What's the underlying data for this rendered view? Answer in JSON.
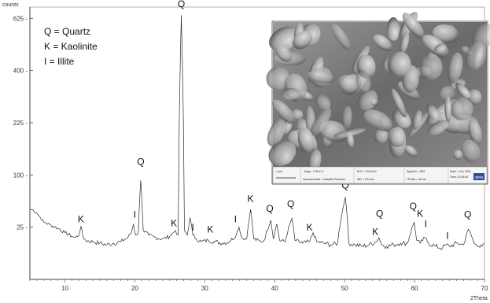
{
  "chart_data": {
    "type": "line",
    "title": "",
    "ylabel_unit": "counts",
    "xlabel_unit": "2Theta",
    "xlim": [
      5,
      70
    ],
    "ylim": [
      0,
      680
    ],
    "x_ticks": [
      10,
      20,
      30,
      40,
      50,
      60,
      70
    ],
    "y_ticks": [
      25,
      100,
      225,
      400,
      625
    ],
    "y_tick_labels": [
      "25 -",
      "100 -",
      "225 -",
      "400 -",
      "625 -"
    ],
    "y_scale": "sqrt",
    "grid": false,
    "legend": {
      "placement": "top-left",
      "entries": [
        "Q = Quartz",
        "K = Kaolinite",
        "I = Illite"
      ]
    },
    "series": [
      {
        "points": [
          [
            5,
            45
          ],
          [
            5.5,
            44
          ],
          [
            6,
            40
          ],
          [
            6.5,
            35
          ],
          [
            7,
            30
          ],
          [
            8,
            27
          ],
          [
            9,
            24
          ],
          [
            10,
            20
          ],
          [
            11,
            17
          ],
          [
            11.5,
            16
          ],
          [
            12,
            18
          ],
          [
            12.3,
            26
          ],
          [
            12.6,
            16
          ],
          [
            13,
            14
          ],
          [
            14,
            13
          ],
          [
            15,
            12
          ],
          [
            16,
            11
          ],
          [
            17,
            12
          ],
          [
            18,
            13
          ],
          [
            19,
            16
          ],
          [
            19.5,
            20
          ],
          [
            19.8,
            28
          ],
          [
            20.1,
            18
          ],
          [
            20.5,
            20
          ],
          [
            20.85,
            90
          ],
          [
            21.2,
            22
          ],
          [
            22,
            18
          ],
          [
            23,
            16
          ],
          [
            24,
            15
          ],
          [
            25,
            17
          ],
          [
            25.5,
            20
          ],
          [
            25.8,
            22
          ],
          [
            26.2,
            18
          ],
          [
            26.65,
            640
          ],
          [
            27.1,
            22
          ],
          [
            27.5,
            18
          ],
          [
            27.9,
            35
          ],
          [
            28.3,
            18
          ],
          [
            28.8,
            15
          ],
          [
            29.5,
            13
          ],
          [
            30.5,
            14
          ],
          [
            31.5,
            13
          ],
          [
            32.5,
            12
          ],
          [
            33.5,
            13
          ],
          [
            34.5,
            18
          ],
          [
            34.9,
            25
          ],
          [
            35.3,
            16
          ],
          [
            36,
            15
          ],
          [
            36.55,
            45
          ],
          [
            37,
            15
          ],
          [
            38,
            13
          ],
          [
            38.5,
            14
          ],
          [
            39.45,
            32
          ],
          [
            39.8,
            15
          ],
          [
            40.3,
            28
          ],
          [
            40.7,
            14
          ],
          [
            41.5,
            13
          ],
          [
            42.45,
            34
          ],
          [
            42.9,
            14
          ],
          [
            44,
            12
          ],
          [
            45,
            13
          ],
          [
            45.5,
            20
          ],
          [
            46,
            13
          ],
          [
            47,
            12
          ],
          [
            48,
            11
          ],
          [
            49,
            12
          ],
          [
            50.1,
            62
          ],
          [
            50.6,
            12
          ],
          [
            51.5,
            11
          ],
          [
            52.5,
            10
          ],
          [
            53.5,
            11
          ],
          [
            54.5,
            13
          ],
          [
            54.9,
            16
          ],
          [
            55.3,
            11
          ],
          [
            56,
            10
          ],
          [
            57,
            11
          ],
          [
            58,
            12
          ],
          [
            59,
            12
          ],
          [
            59.95,
            30
          ],
          [
            60.3,
            14
          ],
          [
            60.8,
            12
          ],
          [
            61.5,
            16
          ],
          [
            62,
            12
          ],
          [
            63,
            10
          ],
          [
            64,
            9
          ],
          [
            64.5,
            11
          ],
          [
            65,
            10
          ],
          [
            66,
            12
          ],
          [
            67,
            11
          ],
          [
            67.7,
            23
          ],
          [
            68.1,
            18
          ],
          [
            68.5,
            12
          ],
          [
            69,
            10
          ],
          [
            69.5,
            11
          ],
          [
            70,
            12
          ]
        ]
      }
    ],
    "annotations": [
      {
        "text": "K",
        "x": 12.3,
        "y": 30
      },
      {
        "text": "I",
        "x": 20.0,
        "y": 35
      },
      {
        "text": "Q",
        "x": 20.85,
        "y": 120
      },
      {
        "text": "Q",
        "x": 26.65,
        "y": 680
      },
      {
        "text": "K",
        "x": 25.6,
        "y": 26
      },
      {
        "text": "I",
        "x": 28.3,
        "y": 22
      },
      {
        "text": "K",
        "x": 30.8,
        "y": 20
      },
      {
        "text": "I",
        "x": 34.4,
        "y": 30
      },
      {
        "text": "K",
        "x": 36.55,
        "y": 55
      },
      {
        "text": "Q",
        "x": 39.3,
        "y": 42
      },
      {
        "text": "Q",
        "x": 42.3,
        "y": 48
      },
      {
        "text": "K",
        "x": 45.0,
        "y": 22
      },
      {
        "text": "Q",
        "x": 50.1,
        "y": 76
      },
      {
        "text": "K",
        "x": 54.4,
        "y": 18
      },
      {
        "text": "Q",
        "x": 55.0,
        "y": 36
      },
      {
        "text": "Q",
        "x": 59.8,
        "y": 45
      },
      {
        "text": "K",
        "x": 60.8,
        "y": 36
      },
      {
        "text": "I",
        "x": 61.6,
        "y": 25
      },
      {
        "text": "I",
        "x": 64.7,
        "y": 15
      },
      {
        "text": "Q",
        "x": 67.6,
        "y": 35
      }
    ]
  },
  "sem_inset": {
    "info_line_1": "1 μm",
    "info_line_2": "Mag = 7.50 K X",
    "info_line_3": "EHT = 15.00 kV",
    "info_line_4": "Signal A = SE2",
    "info_line_5": "Date: 1 Jun 2016",
    "info_line_6": "Vacuum Mode = Variable Pressure",
    "info_line_7": "WD = 8.5 mm",
    "info_line_8": "I Probe = 40 nA",
    "info_line_9": "Time: 10:15:02",
    "brand_mark": "ZEISS"
  }
}
